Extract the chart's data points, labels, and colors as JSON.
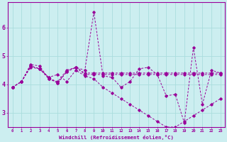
{
  "xlabel": "Windchill (Refroidissement éolien,°C)",
  "background_color": "#cceef0",
  "line_color": "#990099",
  "grid_color": "#aadddd",
  "xlim": [
    -0.5,
    23.5
  ],
  "ylim": [
    2.5,
    6.9
  ],
  "xtick_labels": [
    "0",
    "1",
    "2",
    "3",
    "4",
    "5",
    "6",
    "7",
    "8",
    "9",
    "10",
    "11",
    "12",
    "13",
    "14",
    "15",
    "16",
    "17",
    "18",
    "19",
    "20",
    "21",
    "22",
    "23"
  ],
  "ytick_values": [
    3,
    4,
    5,
    6
  ],
  "series1_x": [
    0,
    1,
    2,
    3,
    4,
    5,
    6,
    7,
    8,
    9,
    10,
    11,
    12,
    13,
    14,
    15,
    16,
    17,
    18,
    19,
    20,
    21,
    22,
    23
  ],
  "series1_y": [
    3.9,
    4.1,
    4.7,
    4.65,
    4.2,
    4.1,
    4.5,
    4.6,
    4.5,
    6.55,
    4.3,
    4.25,
    3.9,
    4.1,
    4.55,
    4.6,
    4.35,
    3.6,
    3.65,
    2.65,
    5.3,
    3.3,
    4.5,
    4.4
  ],
  "series2_x": [
    0,
    1,
    2,
    3,
    4,
    5,
    6,
    7,
    8,
    9,
    10,
    11,
    12,
    13,
    14,
    15,
    16,
    17,
    18,
    19,
    20,
    21,
    22,
    23
  ],
  "series2_y": [
    3.9,
    4.1,
    4.65,
    4.55,
    4.2,
    4.05,
    4.45,
    4.6,
    4.4,
    4.4,
    4.4,
    4.4,
    4.4,
    4.4,
    4.4,
    4.4,
    4.4,
    4.4,
    4.4,
    4.4,
    4.4,
    4.4,
    4.4,
    4.4
  ],
  "series3_x": [
    0,
    1,
    2,
    3,
    4,
    5,
    6,
    7,
    8,
    9,
    10,
    11,
    12,
    13,
    14,
    15,
    16,
    17,
    18,
    19,
    20,
    21,
    22,
    23
  ],
  "series3_y": [
    3.9,
    4.1,
    4.6,
    4.55,
    4.25,
    4.35,
    4.1,
    4.5,
    4.3,
    4.2,
    3.9,
    3.7,
    3.5,
    3.3,
    3.1,
    2.9,
    2.7,
    2.5,
    2.5,
    2.7,
    2.9,
    3.1,
    3.3,
    3.5
  ],
  "series4_x": [
    0,
    1,
    2,
    3,
    4,
    5,
    6,
    7,
    8,
    9,
    10,
    11,
    12,
    13,
    14,
    15,
    16,
    17,
    18,
    19,
    20,
    21,
    22,
    23
  ],
  "series4_y": [
    3.9,
    4.1,
    4.65,
    4.55,
    4.25,
    4.05,
    4.45,
    4.6,
    4.35,
    4.35,
    4.35,
    4.35,
    4.35,
    4.35,
    4.35,
    4.35,
    4.35,
    4.35,
    4.35,
    4.35,
    4.35,
    4.35,
    4.35,
    4.35
  ]
}
